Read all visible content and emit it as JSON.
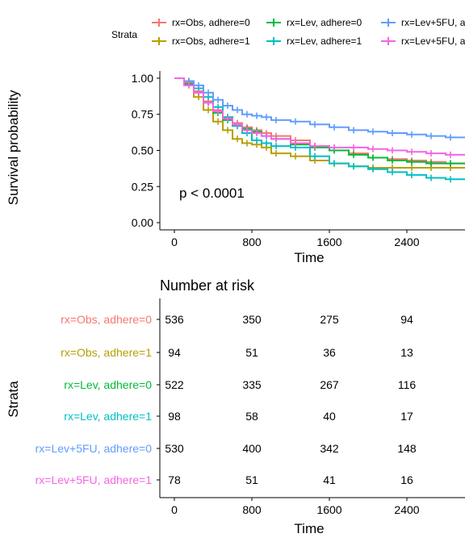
{
  "legend": {
    "title": "Strata",
    "entries": [
      {
        "label": "rx=Obs, adhere=0",
        "color": "#F8766D"
      },
      {
        "label": "rx=Obs, adhere=1",
        "color": "#B79F00"
      },
      {
        "label": "rx=Lev, adhere=0",
        "color": "#00BA38"
      },
      {
        "label": "rx=Lev, adhere=1",
        "color": "#00BFC4"
      },
      {
        "label": "rx=Lev+5FU, a",
        "color": "#619CFF"
      },
      {
        "label": "rx=Lev+5FU, a",
        "color": "#F564E3"
      }
    ]
  },
  "chart_data": [
    {
      "type": "line",
      "ylabel": "Survival probability",
      "xlabel": "Time",
      "annotation": "p < 0.0001",
      "xlim": [
        -150,
        3000
      ],
      "ylim": [
        -0.05,
        1.05
      ],
      "x_ticks": [
        "0",
        "800",
        "1600",
        "2400"
      ],
      "y_ticks": [
        "0.00",
        "0.25",
        "0.50",
        "0.75",
        "1.00"
      ],
      "legend_position": "top",
      "series": [
        {
          "name": "rx=Obs, adhere=0",
          "color": "#F8766D",
          "x": [
            0,
            100,
            200,
            300,
            400,
            500,
            600,
            700,
            800,
            900,
            1000,
            1200,
            1400,
            1600,
            1800,
            2000,
            2200,
            2400,
            2600,
            2800,
            3000
          ],
          "y": [
            1.0,
            0.97,
            0.91,
            0.84,
            0.78,
            0.73,
            0.69,
            0.66,
            0.64,
            0.62,
            0.6,
            0.57,
            0.53,
            0.5,
            0.48,
            0.45,
            0.44,
            0.43,
            0.42,
            0.41,
            0.41
          ]
        },
        {
          "name": "rx=Obs, adhere=1",
          "color": "#B79F00",
          "x": [
            0,
            100,
            200,
            300,
            400,
            500,
            600,
            700,
            800,
            900,
            1000,
            1200,
            1400,
            1600,
            1800,
            2000,
            2200,
            2400,
            2600,
            2800,
            3000
          ],
          "y": [
            1.0,
            0.96,
            0.87,
            0.78,
            0.7,
            0.64,
            0.58,
            0.55,
            0.54,
            0.52,
            0.48,
            0.46,
            0.43,
            0.41,
            0.39,
            0.38,
            0.38,
            0.38,
            0.38,
            0.38,
            0.38
          ]
        },
        {
          "name": "rx=Lev, adhere=0",
          "color": "#00BA38",
          "x": [
            0,
            100,
            200,
            300,
            400,
            500,
            600,
            700,
            800,
            900,
            1000,
            1200,
            1400,
            1600,
            1800,
            2000,
            2200,
            2400,
            2600,
            2800,
            3000
          ],
          "y": [
            1.0,
            0.96,
            0.9,
            0.83,
            0.76,
            0.71,
            0.67,
            0.65,
            0.63,
            0.6,
            0.58,
            0.54,
            0.52,
            0.5,
            0.47,
            0.45,
            0.43,
            0.42,
            0.41,
            0.41,
            0.41
          ]
        },
        {
          "name": "rx=Lev, adhere=1",
          "color": "#00BFC4",
          "x": [
            0,
            100,
            200,
            300,
            400,
            500,
            600,
            700,
            800,
            900,
            1000,
            1200,
            1400,
            1600,
            1800,
            2000,
            2200,
            2400,
            2600,
            2800,
            3000
          ],
          "y": [
            1.0,
            0.98,
            0.93,
            0.87,
            0.8,
            0.73,
            0.67,
            0.62,
            0.57,
            0.55,
            0.53,
            0.52,
            0.46,
            0.41,
            0.39,
            0.37,
            0.35,
            0.33,
            0.31,
            0.3,
            0.3
          ]
        },
        {
          "name": "rx=Lev+5FU, adhere=0",
          "color": "#619CFF",
          "x": [
            0,
            100,
            200,
            300,
            400,
            500,
            600,
            700,
            800,
            900,
            1000,
            1200,
            1400,
            1600,
            1800,
            2000,
            2200,
            2400,
            2600,
            2800,
            3000
          ],
          "y": [
            1.0,
            0.98,
            0.95,
            0.9,
            0.85,
            0.81,
            0.78,
            0.75,
            0.74,
            0.73,
            0.71,
            0.7,
            0.68,
            0.66,
            0.64,
            0.63,
            0.62,
            0.61,
            0.6,
            0.59,
            0.59
          ]
        },
        {
          "name": "rx=Lev+5FU, adhere=1",
          "color": "#F564E3",
          "x": [
            0,
            100,
            200,
            300,
            400,
            500,
            600,
            700,
            800,
            900,
            1000,
            1200,
            1400,
            1600,
            1800,
            2000,
            2200,
            2400,
            2600,
            2800,
            3000
          ],
          "y": [
            1.0,
            0.95,
            0.9,
            0.83,
            0.77,
            0.72,
            0.68,
            0.64,
            0.62,
            0.6,
            0.58,
            0.55,
            0.53,
            0.52,
            0.52,
            0.51,
            0.5,
            0.49,
            0.48,
            0.47,
            0.47
          ]
        }
      ]
    },
    {
      "type": "table",
      "title": "Number at risk",
      "ylabel": "Strata",
      "xlabel": "Time",
      "x_ticks": [
        "0",
        "800",
        "1600",
        "2400"
      ],
      "rows": [
        {
          "label": "rx=Obs, adhere=0",
          "color": "#F8766D",
          "values": [
            "536",
            "350",
            "275",
            "94"
          ]
        },
        {
          "label": "rx=Obs, adhere=1",
          "color": "#B79F00",
          "values": [
            "94",
            "51",
            "36",
            "13"
          ]
        },
        {
          "label": "rx=Lev, adhere=0",
          "color": "#00BA38",
          "values": [
            "522",
            "335",
            "267",
            "116"
          ]
        },
        {
          "label": "rx=Lev, adhere=1",
          "color": "#00BFC4",
          "values": [
            "98",
            "58",
            "40",
            "17"
          ]
        },
        {
          "label": "rx=Lev+5FU, adhere=0",
          "color": "#619CFF",
          "values": [
            "530",
            "400",
            "342",
            "148"
          ]
        },
        {
          "label": "rx=Lev+5FU, adhere=1",
          "color": "#F564E3",
          "values": [
            "78",
            "51",
            "41",
            "16"
          ]
        }
      ]
    }
  ]
}
